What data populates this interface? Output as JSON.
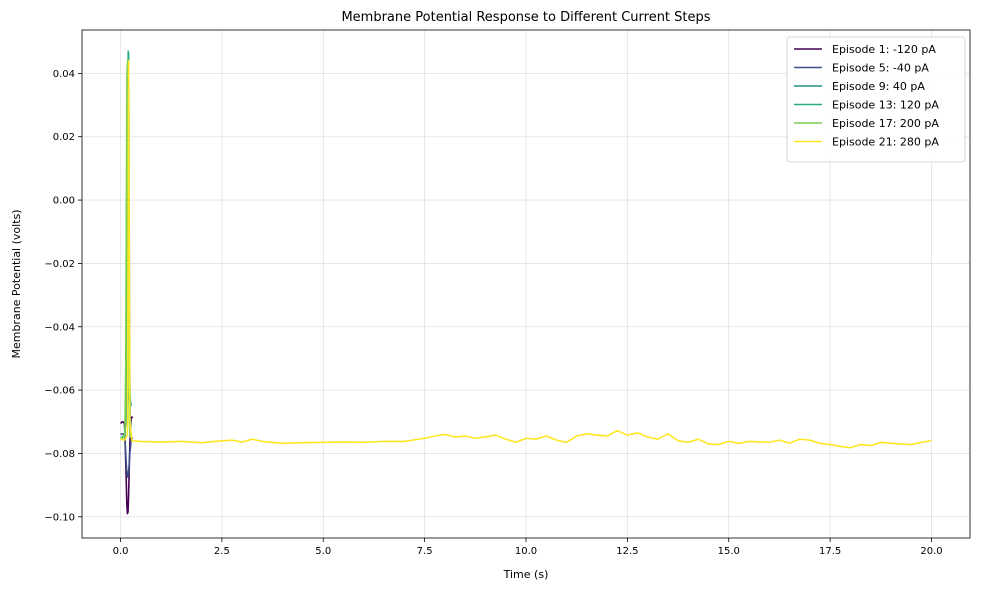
{
  "chart_data": {
    "type": "line",
    "title": "Membrane Potential Response to Different Current Steps",
    "xlabel": "Time (s)",
    "ylabel": "Membrane Potential (volts)",
    "xlim": [
      -0.95,
      20.95
    ],
    "ylim": [
      -0.1067,
      0.0537
    ],
    "x_ticks": [
      0.0,
      2.5,
      5.0,
      7.5,
      10.0,
      12.5,
      15.0,
      17.5,
      20.0
    ],
    "x_tick_labels": [
      "0.0",
      "2.5",
      "5.0",
      "7.5",
      "10.0",
      "12.5",
      "15.0",
      "17.5",
      "20.0"
    ],
    "y_ticks": [
      -0.1,
      -0.08,
      -0.06,
      -0.04,
      -0.02,
      0.0,
      0.02,
      0.04
    ],
    "y_tick_labels": [
      "−0.10",
      "−0.08",
      "−0.06",
      "−0.04",
      "−0.02",
      "0.00",
      "0.02",
      "0.04"
    ],
    "grid": true,
    "legend_position": "top-right",
    "series": [
      {
        "name": "Episode 1: -120 pA",
        "color": "#440154",
        "points": [
          [
            0.0,
            -0.0705
          ],
          [
            0.05,
            -0.07
          ],
          [
            0.09,
            -0.0702
          ],
          [
            0.1,
            -0.0712
          ],
          [
            0.12,
            -0.079
          ],
          [
            0.14,
            -0.088
          ],
          [
            0.155,
            -0.096
          ],
          [
            0.17,
            -0.099
          ],
          [
            0.185,
            -0.0985
          ],
          [
            0.2,
            -0.093
          ],
          [
            0.22,
            -0.082
          ],
          [
            0.24,
            -0.073
          ],
          [
            0.26,
            -0.069
          ],
          [
            0.28,
            -0.0685
          ],
          [
            0.3,
            -0.0688
          ]
        ]
      },
      {
        "name": "Episode 5: -40 pA",
        "color": "#3b528b",
        "points": [
          [
            0.0,
            -0.074
          ],
          [
            0.06,
            -0.0738
          ],
          [
            0.1,
            -0.074
          ],
          [
            0.12,
            -0.078
          ],
          [
            0.15,
            -0.085
          ],
          [
            0.18,
            -0.0875
          ],
          [
            0.2,
            -0.086
          ],
          [
            0.23,
            -0.08
          ],
          [
            0.26,
            -0.076
          ],
          [
            0.3,
            -0.075
          ]
        ]
      },
      {
        "name": "Episode 9: 40 pA",
        "color": "#21918c",
        "points": [
          [
            0.0,
            -0.075
          ],
          [
            0.06,
            -0.0748
          ],
          [
            0.1,
            -0.074
          ],
          [
            0.13,
            -0.07
          ],
          [
            0.16,
            -0.065
          ],
          [
            0.19,
            -0.061
          ],
          [
            0.21,
            -0.06
          ],
          [
            0.23,
            -0.062
          ],
          [
            0.26,
            -0.065
          ]
        ]
      },
      {
        "name": "Episode 13: 120 pA",
        "color": "#27ad81",
        "points": [
          [
            0.0,
            -0.0752
          ],
          [
            0.08,
            -0.075
          ],
          [
            0.11,
            -0.074
          ],
          [
            0.14,
            -0.065
          ],
          [
            0.16,
            -0.02
          ],
          [
            0.175,
            0.02
          ],
          [
            0.19,
            0.047
          ],
          [
            0.2,
            0.046
          ],
          [
            0.21,
            0.01
          ],
          [
            0.225,
            -0.05
          ],
          [
            0.24,
            -0.07
          ],
          [
            0.26,
            -0.075
          ]
        ]
      },
      {
        "name": "Episode 17: 200 pA",
        "color": "#7ad151",
        "points": [
          [
            0.0,
            -0.0752
          ],
          [
            0.08,
            -0.075
          ],
          [
            0.11,
            -0.073
          ],
          [
            0.13,
            -0.05
          ],
          [
            0.145,
            0.0
          ],
          [
            0.16,
            0.04
          ],
          [
            0.175,
            0.044
          ],
          [
            0.19,
            0.0
          ],
          [
            0.205,
            -0.045
          ],
          [
            0.22,
            -0.07
          ],
          [
            0.24,
            -0.075
          ]
        ]
      },
      {
        "name": "Episode 21: 280 pA",
        "color": "#fde725",
        "points": [
          [
            0.0,
            -0.0755
          ],
          [
            0.1,
            -0.0758
          ],
          [
            0.17,
            -0.074
          ],
          [
            0.2,
            0.044
          ],
          [
            0.23,
            -0.07
          ],
          [
            0.28,
            -0.076
          ],
          [
            0.5,
            -0.0762
          ],
          [
            1.0,
            -0.0764
          ],
          [
            1.5,
            -0.0762
          ],
          [
            2.0,
            -0.0766
          ],
          [
            2.5,
            -0.076
          ],
          [
            2.75,
            -0.0758
          ],
          [
            3.0,
            -0.0764
          ],
          [
            3.25,
            -0.0755
          ],
          [
            3.5,
            -0.0762
          ],
          [
            4.0,
            -0.0768
          ],
          [
            4.5,
            -0.0766
          ],
          [
            5.0,
            -0.0765
          ],
          [
            5.5,
            -0.0764
          ],
          [
            6.0,
            -0.0765
          ],
          [
            6.5,
            -0.0762
          ],
          [
            7.0,
            -0.0762
          ],
          [
            7.5,
            -0.0752
          ],
          [
            7.75,
            -0.0745
          ],
          [
            8.0,
            -0.074
          ],
          [
            8.25,
            -0.0748
          ],
          [
            8.5,
            -0.0745
          ],
          [
            8.75,
            -0.0752
          ],
          [
            9.0,
            -0.0748
          ],
          [
            9.25,
            -0.0742
          ],
          [
            9.5,
            -0.0755
          ],
          [
            9.75,
            -0.0765
          ],
          [
            10.0,
            -0.0752
          ],
          [
            10.25,
            -0.0755
          ],
          [
            10.5,
            -0.0745
          ],
          [
            10.75,
            -0.0758
          ],
          [
            11.0,
            -0.0765
          ],
          [
            11.25,
            -0.0745
          ],
          [
            11.5,
            -0.0738
          ],
          [
            11.75,
            -0.0742
          ],
          [
            12.0,
            -0.0745
          ],
          [
            12.25,
            -0.0728
          ],
          [
            12.5,
            -0.0742
          ],
          [
            12.75,
            -0.0735
          ],
          [
            13.0,
            -0.0748
          ],
          [
            13.25,
            -0.0755
          ],
          [
            13.5,
            -0.0738
          ],
          [
            13.75,
            -0.076
          ],
          [
            14.0,
            -0.0765
          ],
          [
            14.25,
            -0.0755
          ],
          [
            14.5,
            -0.077
          ],
          [
            14.75,
            -0.0772
          ],
          [
            15.0,
            -0.0762
          ],
          [
            15.25,
            -0.0768
          ],
          [
            15.5,
            -0.0762
          ],
          [
            16.0,
            -0.0765
          ],
          [
            16.25,
            -0.0758
          ],
          [
            16.5,
            -0.0768
          ],
          [
            16.75,
            -0.0755
          ],
          [
            17.0,
            -0.0758
          ],
          [
            17.25,
            -0.0768
          ],
          [
            17.5,
            -0.0772
          ],
          [
            17.75,
            -0.0778
          ],
          [
            18.0,
            -0.0782
          ],
          [
            18.25,
            -0.0772
          ],
          [
            18.5,
            -0.0775
          ],
          [
            18.75,
            -0.0765
          ],
          [
            19.0,
            -0.0768
          ],
          [
            19.25,
            -0.077
          ],
          [
            19.5,
            -0.0772
          ],
          [
            19.75,
            -0.0765
          ],
          [
            20.0,
            -0.076
          ]
        ]
      }
    ]
  }
}
